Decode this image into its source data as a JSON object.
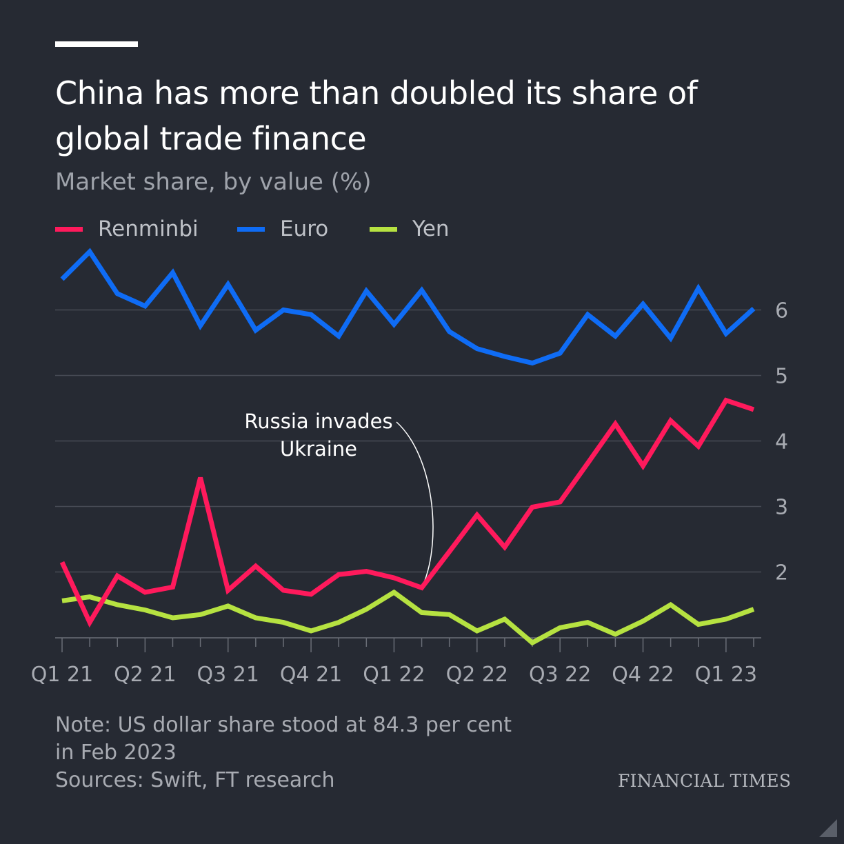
{
  "header": {
    "title": "China has more than doubled its share of global trade finance",
    "subtitle": "Market share, by value (%)"
  },
  "legend": [
    {
      "label": "Renminbi",
      "color": "#ff1a5c"
    },
    {
      "label": "Euro",
      "color": "#0f6cf5"
    },
    {
      "label": "Yen",
      "color": "#b6e241"
    }
  ],
  "chart_data": {
    "type": "line",
    "title": "China has more than doubled its share of global trade finance",
    "subtitle": "Market share, by value (%)",
    "x_tick_labels": [
      "Q1 21",
      "Q2 21",
      "Q3 21",
      "Q4 21",
      "Q1 22",
      "Q2 22",
      "Q3 22",
      "Q4 22",
      "Q1 23"
    ],
    "x": [
      "Jan 2021",
      "Feb 2021",
      "Mar 2021",
      "Apr 2021",
      "May 2021",
      "Jun 2021",
      "Jul 2021",
      "Aug 2021",
      "Sep 2021",
      "Oct 2021",
      "Nov 2021",
      "Dec 2021",
      "Jan 2022",
      "Feb 2022",
      "Mar 2022",
      "Apr 2022",
      "May 2022",
      "Jun 2022",
      "Jul 2022",
      "Aug 2022",
      "Sep 2022",
      "Oct 2022",
      "Nov 2022",
      "Dec 2022",
      "Jan 2023",
      "Feb 2023"
    ],
    "ylim": [
      0.9,
      6.9
    ],
    "y_ticks": [
      2,
      3,
      4,
      5,
      6
    ],
    "y_axis_side": "right",
    "grid": true,
    "series": [
      {
        "name": "Renminbi",
        "color": "#ff1a5c",
        "values": [
          2.15,
          1.23,
          1.94,
          1.69,
          1.77,
          3.44,
          1.72,
          2.09,
          1.72,
          1.66,
          1.96,
          2.01,
          1.91,
          1.76,
          2.31,
          2.87,
          2.38,
          2.99,
          3.07,
          3.66,
          4.26,
          3.62,
          4.31,
          3.92,
          4.62,
          4.48
        ]
      },
      {
        "name": "Euro",
        "color": "#0f6cf5",
        "values": [
          6.47,
          6.89,
          6.25,
          6.06,
          6.57,
          5.76,
          6.39,
          5.69,
          6.0,
          5.93,
          5.6,
          6.29,
          5.78,
          6.3,
          5.67,
          5.41,
          5.29,
          5.19,
          5.34,
          5.93,
          5.6,
          6.09,
          5.57,
          6.33,
          5.64,
          6.02
        ]
      },
      {
        "name": "Yen",
        "color": "#b6e241",
        "values": [
          1.56,
          1.62,
          1.5,
          1.42,
          1.3,
          1.35,
          1.48,
          1.3,
          1.23,
          1.1,
          1.23,
          1.43,
          1.69,
          1.38,
          1.35,
          1.1,
          1.28,
          0.92,
          1.15,
          1.23,
          1.05,
          1.25,
          1.5,
          1.2,
          1.28,
          1.43
        ]
      }
    ],
    "annotations": [
      {
        "text_lines": [
          "Russia invades",
          "Ukraine"
        ],
        "points_to_series": "Renminbi",
        "points_to_x": "Feb 2022"
      }
    ]
  },
  "notes": {
    "line1": "Note: US dollar share stood at 84.3 per cent",
    "line2": "in Feb 2023",
    "line3": "Sources: Swift, FT research"
  },
  "brand": "FINANCIAL TIMES"
}
